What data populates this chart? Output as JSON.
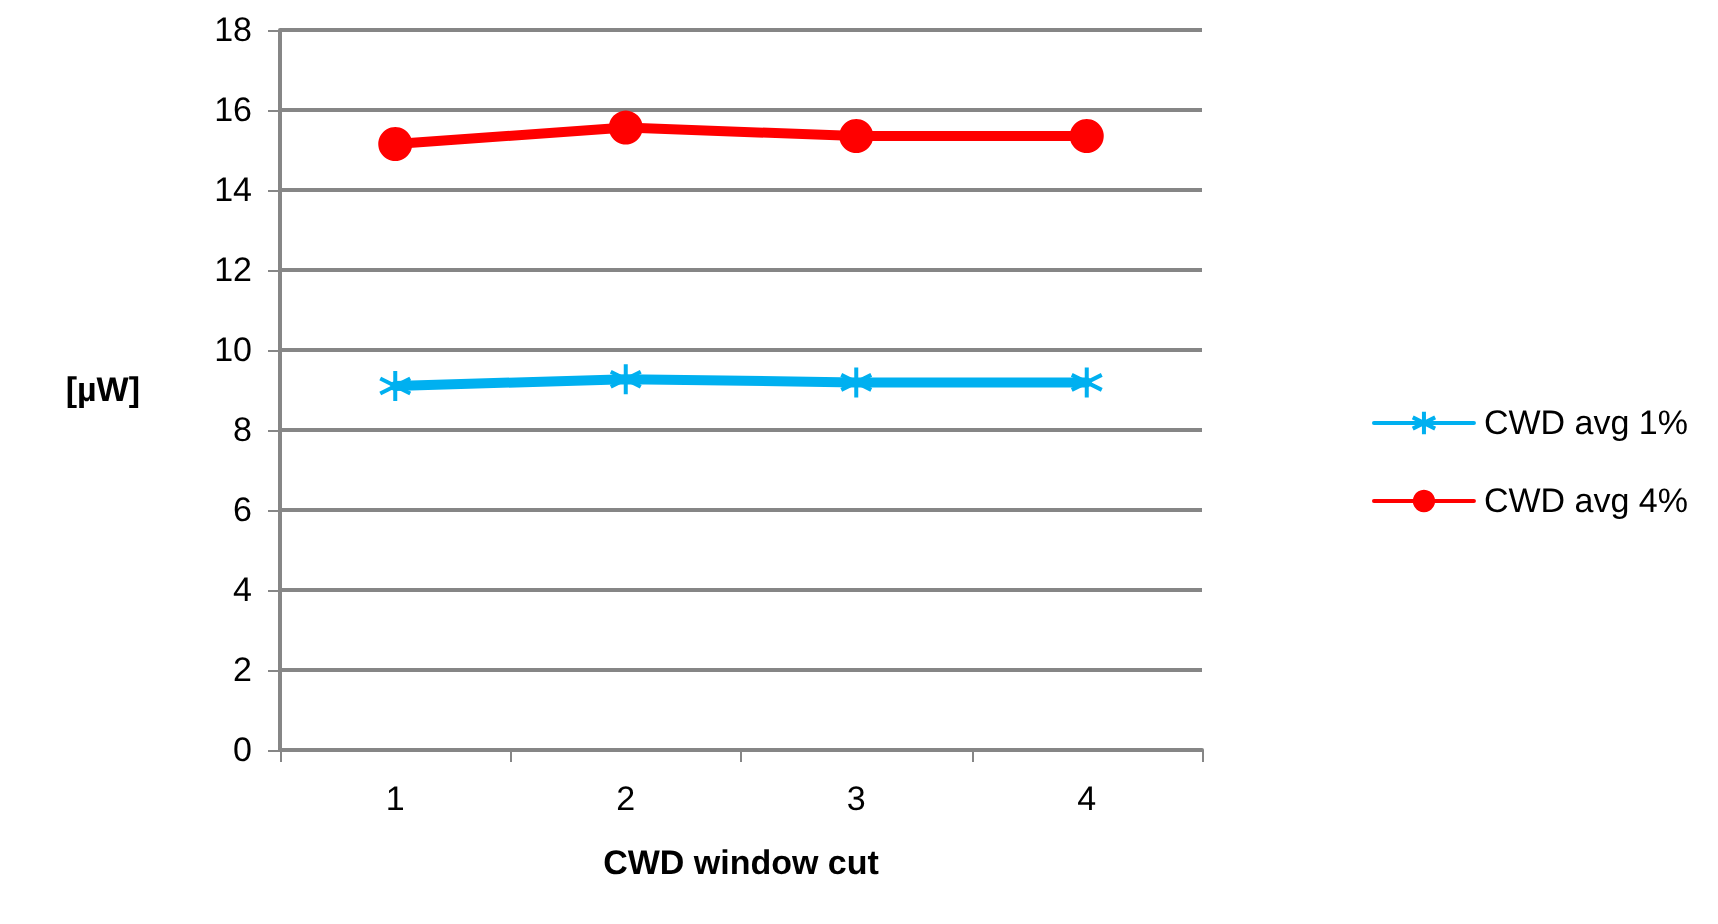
{
  "chart_data": {
    "type": "line",
    "xlabel": "CWD window cut",
    "ylabel": "[µW]",
    "categories": [
      "1",
      "2",
      "3",
      "4"
    ],
    "series": [
      {
        "name": "CWD avg 1%",
        "color": "#00b0f0",
        "marker": "cross",
        "values": [
          9.1,
          9.27,
          9.19,
          9.19
        ]
      },
      {
        "name": "CWD avg 4%",
        "color": "#ff0000",
        "marker": "circle",
        "values": [
          15.15,
          15.56,
          15.35,
          15.35
        ]
      }
    ],
    "ylim": [
      0,
      18
    ],
    "yticks": [
      0,
      2,
      4,
      6,
      8,
      10,
      12,
      14,
      16,
      18
    ],
    "grid": "y",
    "legend": "right",
    "line_style": "solid"
  }
}
